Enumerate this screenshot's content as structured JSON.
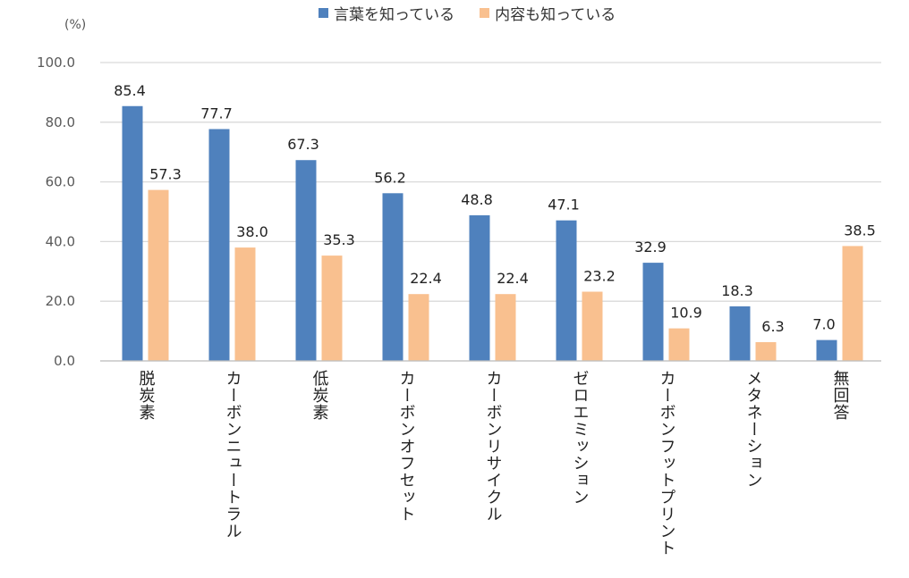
{
  "chart_data": {
    "type": "bar",
    "title": "",
    "unit_label": "(%)",
    "xlabel": "",
    "ylabel": "(%)",
    "ylim": [
      0,
      100
    ],
    "yticks": [
      "0.0",
      "20.0",
      "40.0",
      "60.0",
      "80.0",
      "100.0"
    ],
    "ytick_values": [
      0,
      20,
      40,
      60,
      80,
      100
    ],
    "grid": true,
    "legend_position": "top",
    "categories": [
      "脱炭素",
      "カーボンニュートラル",
      "低炭素",
      "カーボンオフセット",
      "カーボンリサイクル",
      "ゼロエミッション",
      "カーボンフットプリント",
      "メタネーション",
      "無回答"
    ],
    "series": [
      {
        "name": "言葉を知っている",
        "color": "#4f81bd",
        "values": [
          85.4,
          77.7,
          67.3,
          56.2,
          48.8,
          47.1,
          32.9,
          18.3,
          7.0
        ],
        "labels": [
          "85.4",
          "77.7",
          "67.3",
          "56.2",
          "48.8",
          "47.1",
          "32.9",
          "18.3",
          "7.0"
        ]
      },
      {
        "name": "内容も知っている",
        "color": "#f9c08f",
        "values": [
          57.3,
          38.0,
          35.3,
          22.4,
          22.4,
          23.2,
          10.9,
          6.3,
          38.5
        ],
        "labels": [
          "57.3",
          "38.0",
          "35.3",
          "22.4",
          "22.4",
          "23.2",
          "10.9",
          "6.3",
          "38.5"
        ]
      }
    ],
    "gridline_color": "#d9d9d9"
  }
}
